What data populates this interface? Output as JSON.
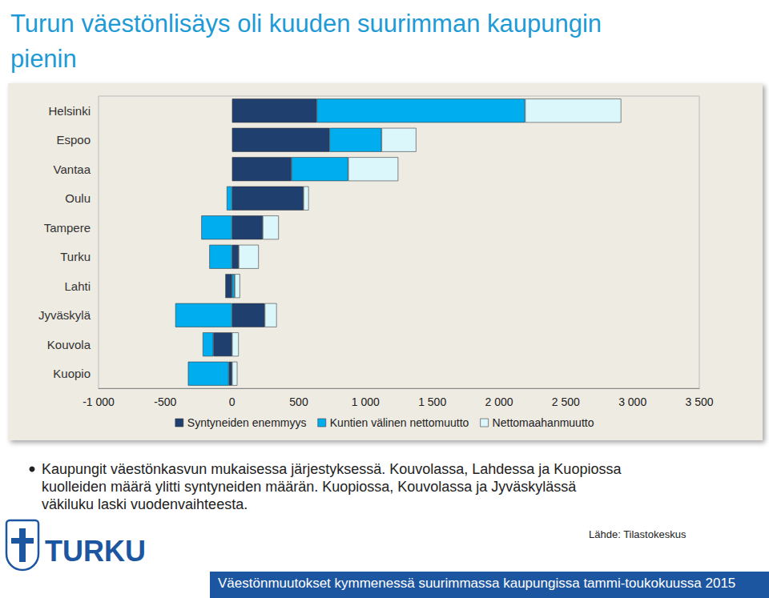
{
  "chart_data": {
    "type": "bar",
    "title": "Turun väestönlisäys oli kuuden suurimman kaupungin pienin",
    "orientation": "horizontal",
    "stacked": true,
    "grid": false,
    "legend": "bottom",
    "categories": [
      "Helsinki",
      "Espoo",
      "Vantaa",
      "Oulu",
      "Tampere",
      "Turku",
      "Lahti",
      "Jyväskylä",
      "Kouvola",
      "Kuopio"
    ],
    "series": [
      {
        "name": "Syntyneiden enemmyys",
        "color": "#1f3f6e",
        "values": [
          635,
          730,
          445,
          535,
          230,
          50,
          -50,
          245,
          -140,
          -25
        ]
      },
      {
        "name": "Kuntien välinen nettomuutto",
        "color": "#00aeef",
        "values": [
          1560,
          390,
          425,
          -40,
          -230,
          -170,
          20,
          -425,
          -80,
          -305
        ]
      },
      {
        "name": "Nettomaahanmuutto",
        "color": "#dcf7fc",
        "values": [
          720,
          260,
          375,
          40,
          120,
          150,
          40,
          90,
          50,
          40
        ]
      }
    ],
    "xlim": [
      -1000,
      3500
    ],
    "xticks": [
      {
        "value": -1000,
        "label": "-1 000"
      },
      -500,
      0,
      500,
      {
        "value": 1000,
        "label": "1 000"
      },
      {
        "value": 1500,
        "label": "1 500"
      },
      {
        "value": 2000,
        "label": "2 000"
      },
      {
        "value": 2500,
        "label": "2 500"
      },
      {
        "value": 3000,
        "label": "3 000"
      },
      {
        "value": 3500,
        "label": "3 500"
      }
    ],
    "note": "Kaupungit väestönkasvun mukaisessa järjestyksessä. Kouvolassa, Lahdessa ja Kuopiossa kuolleiden määrä ylitti syntyneiden määrän. Kuopiossa, Kouvolassa ja Jyväskylässä väkiluku laski vuodenvaihteesta.",
    "source": "Lähde: Tilastokeskus",
    "logo": "TURKU",
    "footer": "Väestönmuutokset kymmenessä suurimmassa kaupungissa tammi-toukokuussa 2015"
  }
}
